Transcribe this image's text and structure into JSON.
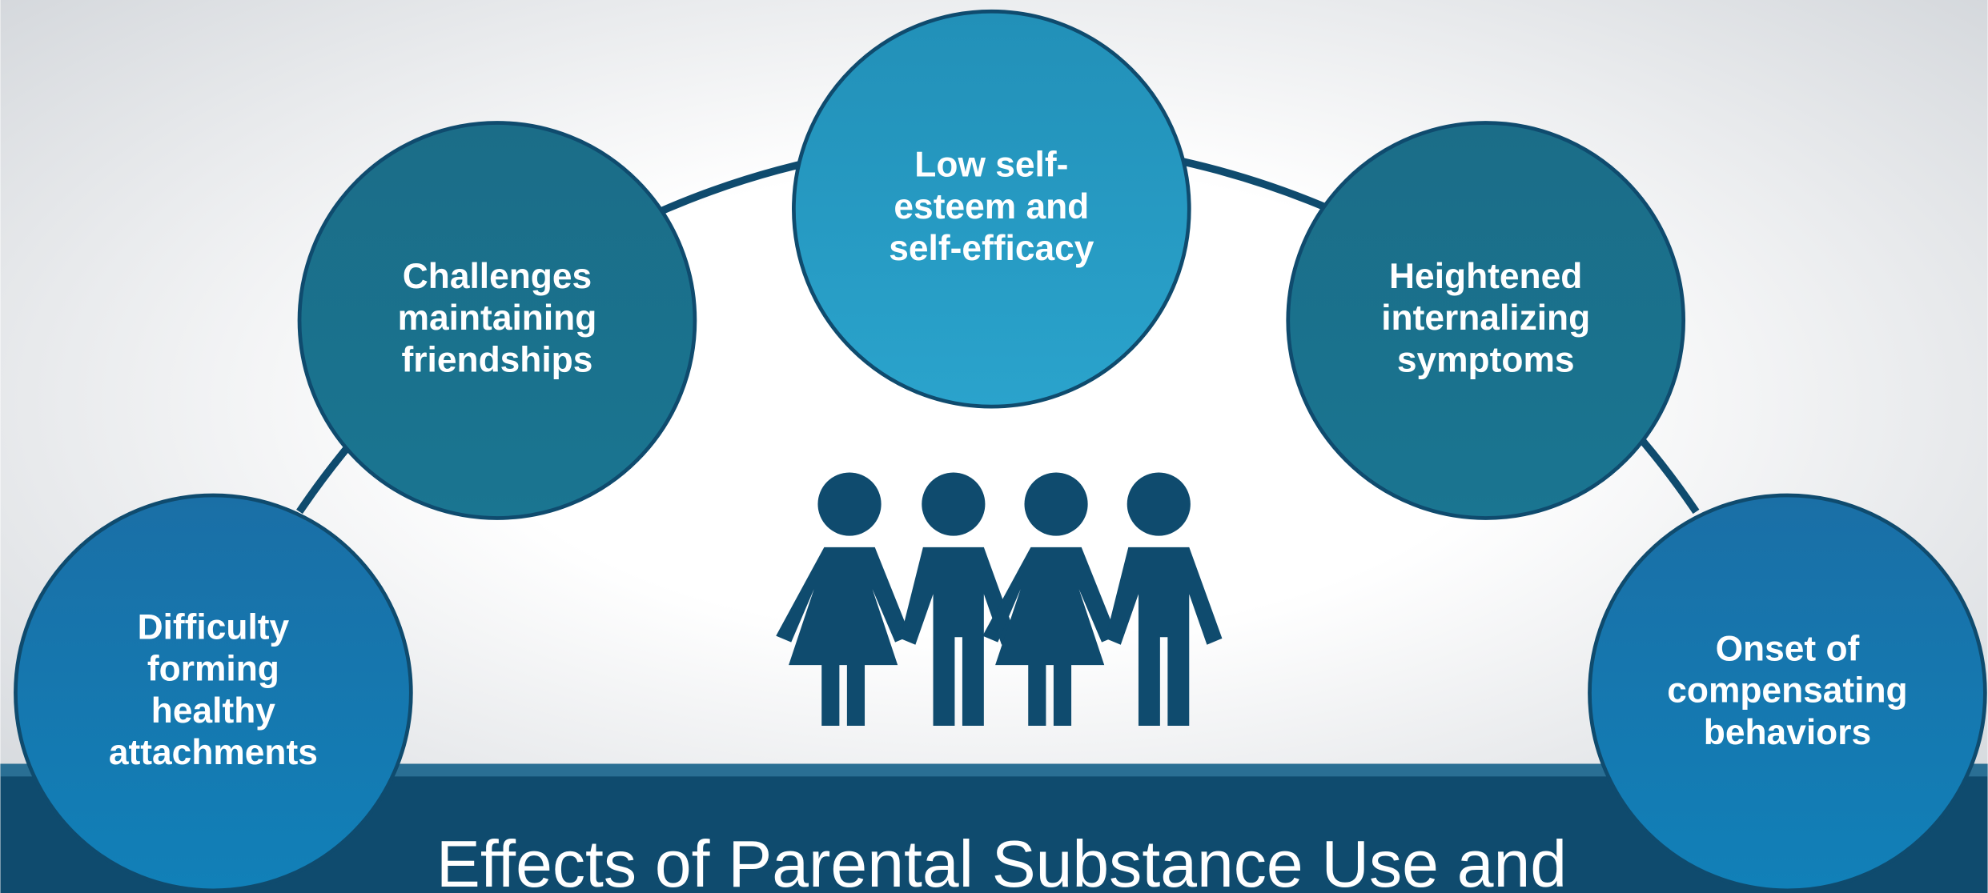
{
  "title": "Effects of Parental Substance Use and",
  "nodes": [
    {
      "lines": [
        "Difficulty",
        "forming",
        "healthy",
        "attachments"
      ]
    },
    {
      "lines": [
        "Challenges",
        "maintaining",
        "friendships"
      ]
    },
    {
      "lines": [
        "Low self-",
        "esteem and",
        "self-efficacy"
      ]
    },
    {
      "lines": [
        "Heightened",
        "internalizing",
        "symptoms"
      ]
    },
    {
      "lines": [
        "Onset of",
        "compensating",
        "behaviors"
      ]
    }
  ]
}
